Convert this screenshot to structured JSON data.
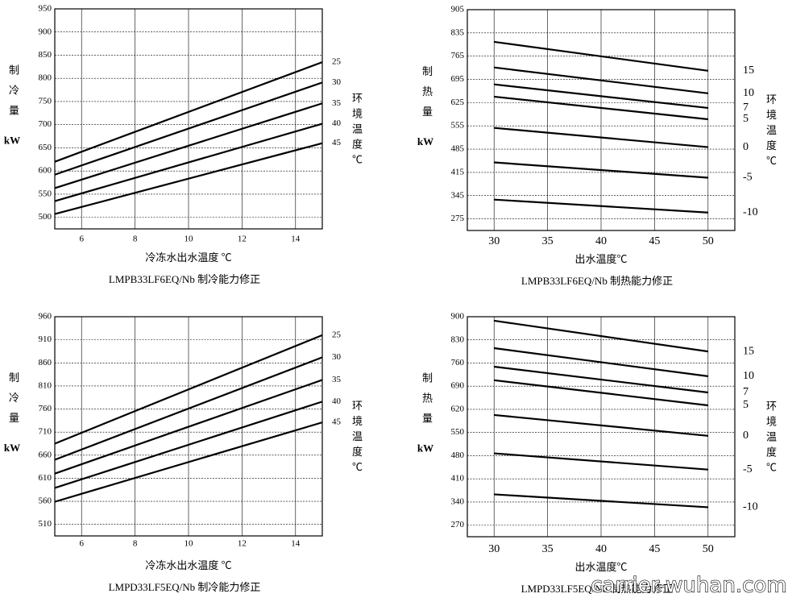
{
  "chart_data": [
    {
      "type": "line",
      "title": "LMPB33LF6EQ/Nb 制冷能力修正",
      "x_label": "冷冻水出水温度 ℃",
      "y_label": "制冷量",
      "y_unit": "kW",
      "legend_title": "环境温度℃",
      "x": [
        5,
        15
      ],
      "xlim": [
        5,
        15
      ],
      "xticks": [
        6,
        8,
        10,
        12,
        14
      ],
      "ylim": [
        475,
        950
      ],
      "yticks": [
        500,
        550,
        600,
        650,
        700,
        750,
        800,
        850,
        900,
        950
      ],
      "grid": true,
      "series": [
        {
          "name": "25",
          "color": "#000000",
          "values": [
            620,
            835
          ]
        },
        {
          "name": "30",
          "color": "#000000",
          "values": [
            592,
            791
          ]
        },
        {
          "name": "35",
          "color": "#000000",
          "values": [
            563,
            746
          ]
        },
        {
          "name": "40",
          "color": "#000000",
          "values": [
            535,
            702
          ]
        },
        {
          "name": "45",
          "color": "#000000",
          "values": [
            507,
            660
          ]
        }
      ]
    },
    {
      "type": "line",
      "title": "LMPB33LF6EQ/Nb 制热能力修正",
      "x_label": "出水温度℃",
      "y_label": "制热量",
      "y_unit": "kW",
      "legend_title": "环境温度℃",
      "x": [
        30,
        50
      ],
      "xlim": [
        27.5,
        52.5
      ],
      "xticks": [
        30,
        35,
        40,
        45,
        50
      ],
      "ylim": [
        240,
        905
      ],
      "yticks": [
        275,
        345,
        415,
        485,
        555,
        625,
        695,
        765,
        835,
        905
      ],
      "grid": true,
      "series": [
        {
          "name": "15",
          "color": "#000000",
          "values": [
            808,
            721
          ]
        },
        {
          "name": "10",
          "color": "#000000",
          "values": [
            731,
            653
          ]
        },
        {
          "name": "7",
          "color": "#000000",
          "values": [
            680,
            609
          ]
        },
        {
          "name": "5",
          "color": "#000000",
          "values": [
            643,
            575
          ]
        },
        {
          "name": "0",
          "color": "#000000",
          "values": [
            549,
            491
          ]
        },
        {
          "name": "-5",
          "color": "#000000",
          "values": [
            445,
            399
          ]
        },
        {
          "name": "-10",
          "color": "#000000",
          "values": [
            333,
            294
          ]
        }
      ]
    },
    {
      "type": "line",
      "title": "LMPD33LF5EQ/Nb 制冷能力修正",
      "x_label": "冷冻水出水温度 ℃",
      "y_label": "制冷量",
      "y_unit": "kW",
      "legend_title": "环境温度℃",
      "x": [
        5,
        15
      ],
      "xlim": [
        5,
        15
      ],
      "xticks": [
        6,
        8,
        10,
        12,
        14
      ],
      "ylim": [
        485,
        960
      ],
      "yticks": [
        510,
        560,
        610,
        660,
        710,
        760,
        810,
        860,
        910,
        960
      ],
      "grid": true,
      "series": [
        {
          "name": "25",
          "color": "#000000",
          "values": [
            685,
            920
          ]
        },
        {
          "name": "30",
          "color": "#000000",
          "values": [
            650,
            872
          ]
        },
        {
          "name": "35",
          "color": "#000000",
          "values": [
            620,
            823
          ]
        },
        {
          "name": "40",
          "color": "#000000",
          "values": [
            589,
            776
          ]
        },
        {
          "name": "45",
          "color": "#000000",
          "values": [
            559,
            731
          ]
        }
      ]
    },
    {
      "type": "line",
      "title": "LMPD33LF5EQ/Nb 制热能力修正",
      "x_label": "出水温度℃",
      "y_label": "制热量",
      "y_unit": "kW",
      "legend_title": "环境温度℃",
      "x": [
        30,
        50
      ],
      "xlim": [
        27.5,
        52.5
      ],
      "xticks": [
        30,
        35,
        40,
        45,
        50
      ],
      "ylim": [
        235,
        900
      ],
      "yticks": [
        270,
        340,
        410,
        480,
        550,
        620,
        690,
        760,
        830,
        900
      ],
      "grid": true,
      "series": [
        {
          "name": "15",
          "color": "#000000",
          "values": [
            888,
            795
          ]
        },
        {
          "name": "10",
          "color": "#000000",
          "values": [
            805,
            720
          ]
        },
        {
          "name": "7",
          "color": "#000000",
          "values": [
            749,
            671
          ]
        },
        {
          "name": "5",
          "color": "#000000",
          "values": [
            708,
            632
          ]
        },
        {
          "name": "0",
          "color": "#000000",
          "values": [
            603,
            540
          ]
        },
        {
          "name": "-5",
          "color": "#000000",
          "values": [
            487,
            438
          ]
        },
        {
          "name": "-10",
          "color": "#000000",
          "values": [
            363,
            324
          ]
        }
      ]
    }
  ],
  "watermark": "carrier-wuhan.com"
}
